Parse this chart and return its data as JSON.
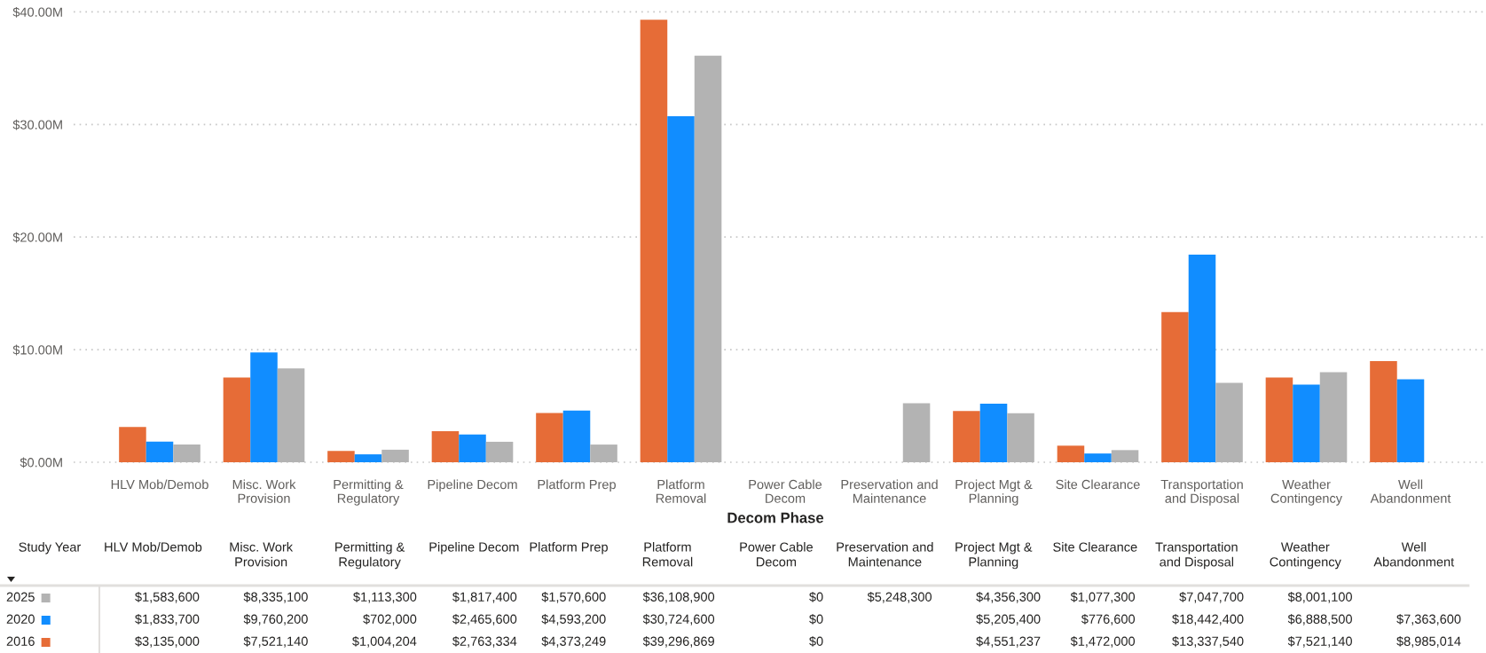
{
  "chart_data": {
    "type": "bar",
    "xlabel": "Decom Phase",
    "legend_title": "Study Year",
    "legend": "bottom left",
    "categories": [
      "HLV Mob/Demob",
      "Misc. Work Provision",
      "Permitting & Regulatory",
      "Pipeline Decom",
      "Platform Prep",
      "Platform Removal",
      "Power Cable Decom",
      "Preservation and Maintenance",
      "Project Mgt & Planning",
      "Site Clearance",
      "Transportation and Disposal",
      "Weather Contingency",
      "Well Abandonment"
    ],
    "series": [
      {
        "name": "2016",
        "color": "#e66c37",
        "values": [
          3135000,
          7521140,
          1004204,
          2763334,
          4373249,
          39296869,
          0,
          null,
          4551237,
          1472000,
          13337540,
          7521140,
          8985014
        ],
        "value_labels": [
          "$3,135,000",
          "$7,521,140",
          "$1,004,204",
          "$2,763,334",
          "$4,373,249",
          "$39,296,869",
          "$0",
          null,
          "$4,551,237",
          "$1,472,000",
          "$13,337,540",
          "$7,521,140",
          "$8,985,014"
        ]
      },
      {
        "name": "2020",
        "color": "#118dff",
        "values": [
          1833700,
          9760200,
          702000,
          2465600,
          4593200,
          30724600,
          0,
          null,
          5205400,
          776600,
          18442400,
          6888500,
          7363600
        ],
        "value_labels": [
          "$1,833,700",
          "$9,760,200",
          "$702,000",
          "$2,465,600",
          "$4,593,200",
          "$30,724,600",
          "$0",
          null,
          "$5,205,400",
          "$776,600",
          "$18,442,400",
          "$6,888,500",
          "$7,363,600"
        ]
      },
      {
        "name": "2025",
        "color": "#b3b3b3",
        "values": [
          1583600,
          8335100,
          1113300,
          1817400,
          1570600,
          36108900,
          0,
          5248300,
          4356300,
          1077300,
          7047700,
          8001100,
          null
        ],
        "value_labels": [
          "$1,583,600",
          "$8,335,100",
          "$1,113,300",
          "$1,817,400",
          "$1,570,600",
          "$36,108,900",
          "$0",
          "$5,248,300",
          "$4,356,300",
          "$1,077,300",
          "$7,047,700",
          "$8,001,100",
          null
        ]
      }
    ],
    "ylim": [
      0,
      40000000
    ],
    "yticks": [
      {
        "value": 0,
        "label": "$0.00M"
      },
      {
        "value": 10000000,
        "label": "$10.00M"
      },
      {
        "value": 20000000,
        "label": "$20.00M"
      },
      {
        "value": 30000000,
        "label": "$30.00M"
      },
      {
        "value": 40000000,
        "label": "$40.00M"
      }
    ],
    "grid": "y"
  }
}
